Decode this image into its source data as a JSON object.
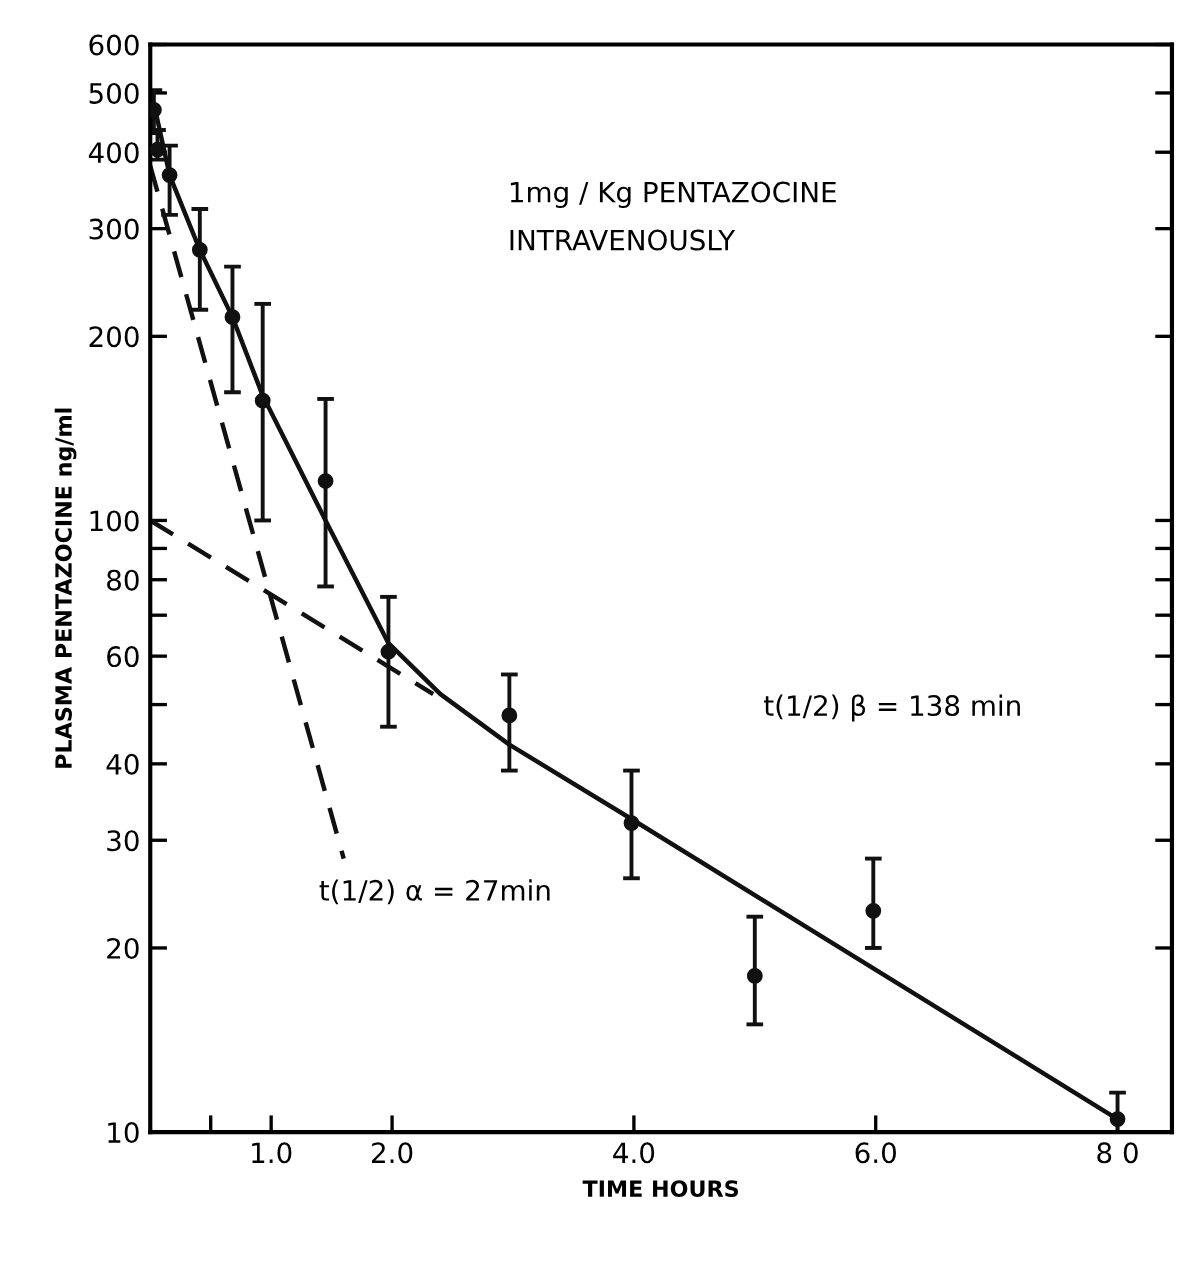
{
  "chart_data": {
    "type": "scatter",
    "xlabel": "TIME HOURS",
    "ylabel": "PLASMA PENTAZOCINE ng/ml",
    "log": "y",
    "xlim": [
      0,
      8.45
    ],
    "ylim": [
      10,
      600
    ],
    "xticks": [
      {
        "value": 0.5,
        "label": null
      },
      {
        "value": 1,
        "label": "1.0"
      },
      {
        "value": 2,
        "label": "2.0"
      },
      {
        "value": 4,
        "label": "4.0"
      },
      {
        "value": 6,
        "label": "6.0"
      },
      {
        "value": 8,
        "label": "8 0"
      }
    ],
    "yticks": [
      10,
      20,
      30,
      40,
      {
        "value": 50,
        "label": null
      },
      60,
      {
        "value": 70,
        "label": null
      },
      80,
      {
        "value": 90,
        "label": null
      },
      100,
      200,
      300,
      400,
      500,
      600
    ],
    "grid": false,
    "legend": false,
    "annotations": [
      "1mg / Kg PENTAZOCINE\nINTRAVENOUSLY",
      "t(1/2) α = 27min",
      "t(1/2) β = 138 min"
    ],
    "series": [
      {
        "type": "line",
        "color": "#111111",
        "marker": "none",
        "line_style": "solid",
        "x": [
          0.03,
          0.16,
          0.41,
          0.68,
          0.93,
          1.45,
          1.97,
          2.4,
          2.97,
          3.98,
          8.0
        ],
        "values": [
          480,
          367,
          277,
          215,
          160,
          100,
          63,
          52,
          43,
          32.5,
          10.5
        ]
      },
      {
        "type": "line",
        "color": "#111111",
        "marker": "none",
        "line_style": "dashed",
        "x": [
          0,
          1.6
        ],
        "values": [
          380,
          28
        ]
      },
      {
        "type": "line",
        "color": "#111111",
        "marker": "none",
        "line_style": "dashed",
        "x": [
          0,
          2.34
        ],
        "values": [
          100,
          52
        ]
      },
      {
        "color": "#111111",
        "marker": "circle",
        "x": [
          0.03,
          0.06,
          0.16,
          0.41,
          0.68,
          0.93,
          1.45,
          1.97,
          2.97,
          3.98,
          5.0,
          5.98,
          8.0
        ],
        "values": [
          469,
          404,
          367,
          277,
          215,
          157,
          116,
          61,
          48,
          32,
          18,
          23,
          10.5
        ],
        "errors": [
          [
            430,
            505
          ],
          [
            389,
            435
          ],
          [
            316,
            410
          ],
          [
            221,
            323
          ],
          [
            162,
            260
          ],
          [
            100,
            226
          ],
          [
            78,
            158
          ],
          [
            46,
            75
          ],
          [
            39,
            56
          ],
          [
            26,
            39
          ],
          [
            15,
            22.5
          ],
          [
            20,
            28
          ],
          [
            10,
            11.6
          ]
        ]
      }
    ]
  }
}
